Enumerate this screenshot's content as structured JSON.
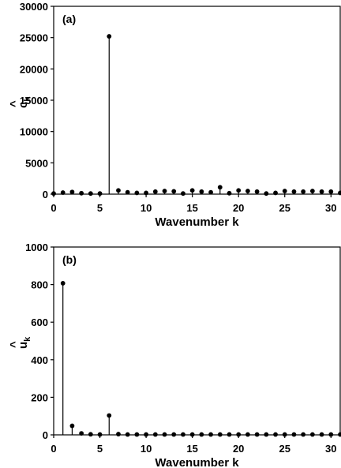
{
  "chart_data": [
    {
      "type": "stem",
      "panel_label": "(a)",
      "xlabel": "Wavenumber k",
      "ylabel": "c",
      "ylabel_hat": "^",
      "ylabel_sub": "k",
      "xlim": [
        0,
        31
      ],
      "ylim": [
        0,
        30000
      ],
      "xticks": [
        0,
        5,
        10,
        15,
        20,
        25,
        30
      ],
      "yticks": [
        0,
        5000,
        10000,
        15000,
        20000,
        25000,
        30000
      ],
      "x": [
        0,
        1,
        2,
        3,
        4,
        5,
        6,
        7,
        8,
        9,
        10,
        11,
        12,
        13,
        14,
        15,
        16,
        17,
        18,
        19,
        20,
        21,
        22,
        23,
        24,
        25,
        26,
        27,
        28,
        29,
        30,
        31
      ],
      "values": [
        100,
        250,
        350,
        150,
        100,
        100,
        25200,
        600,
        300,
        200,
        200,
        400,
        500,
        450,
        100,
        600,
        400,
        300,
        1100,
        150,
        600,
        500,
        400,
        100,
        200,
        500,
        400,
        400,
        500,
        400,
        400,
        200
      ]
    },
    {
      "type": "stem",
      "panel_label": "(b)",
      "xlabel": "Wavenumber k",
      "ylabel": "u",
      "ylabel_hat": "^",
      "ylabel_sub": "k",
      "xlim": [
        0,
        31
      ],
      "ylim": [
        0,
        1000
      ],
      "xticks": [
        0,
        5,
        10,
        15,
        20,
        25,
        30
      ],
      "yticks": [
        0,
        200,
        400,
        600,
        800,
        1000
      ],
      "x": [
        1,
        2,
        3,
        4,
        5,
        6,
        7,
        8,
        9,
        10,
        11,
        12,
        13,
        14,
        15,
        16,
        17,
        18,
        19,
        20,
        21,
        22,
        23,
        24,
        25,
        26,
        27,
        28,
        29,
        30,
        31
      ],
      "values": [
        807,
        48,
        8,
        3,
        2,
        103,
        4,
        2,
        2,
        2,
        2,
        2,
        2,
        2,
        2,
        2,
        2,
        2,
        2,
        2,
        2,
        2,
        2,
        2,
        2,
        2,
        2,
        2,
        2,
        2,
        2
      ]
    }
  ]
}
